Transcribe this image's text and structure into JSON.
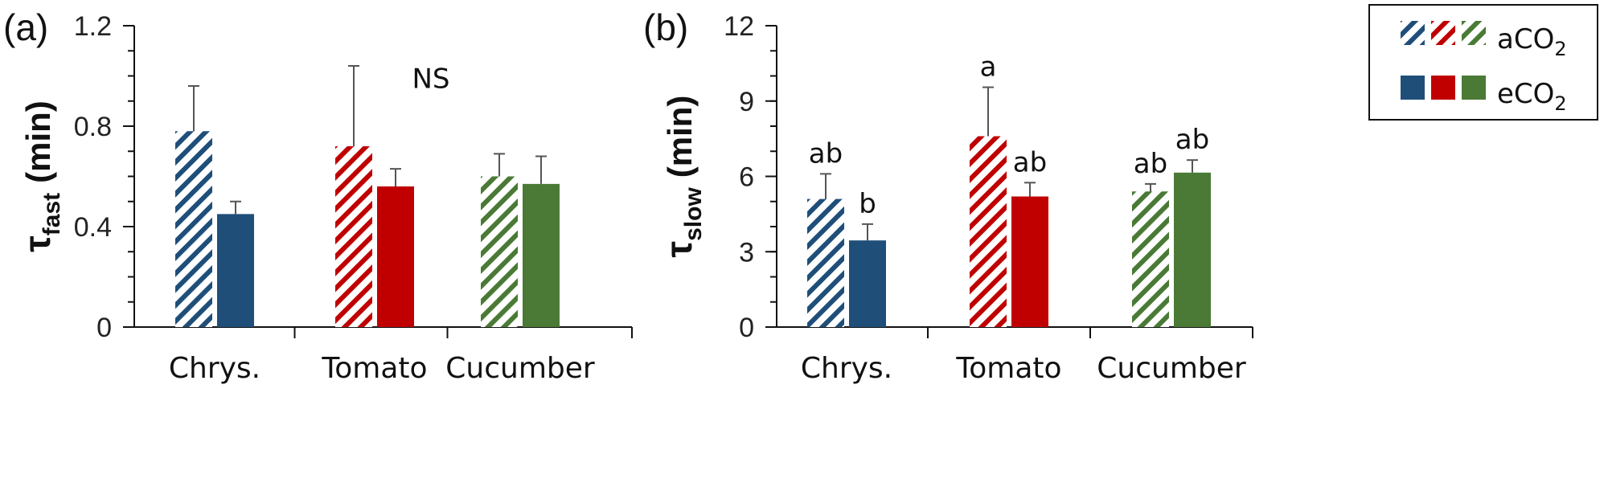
{
  "colors": {
    "Chrys.": "#1f4e79",
    "Tomato": "#c00000",
    "Cucumber": "#4a7a35",
    "axis": "#111111",
    "error": "#555555"
  },
  "legend": {
    "items": [
      {
        "label": "aCO",
        "subscript": "2",
        "fill": "hatched"
      },
      {
        "label": "eCO",
        "subscript": "2",
        "fill": "solid"
      }
    ]
  },
  "chart_data": [
    {
      "type": "bar",
      "panel": "(a)",
      "ylabel": {
        "symbol": "τ",
        "subscript": "fast",
        "unit": "(min)"
      },
      "categories": [
        "Chrys.",
        "Tomato",
        "Cucumber"
      ],
      "ylim": [
        0,
        1.2
      ],
      "yticks": [
        "0",
        "0.4",
        "0.8",
        "1.2"
      ],
      "ytick_values": [
        0,
        0.4,
        0.8,
        1.2
      ],
      "minor_tick_step": 0.1,
      "series": [
        {
          "name": "aCO2",
          "fill": "hatched",
          "values": [
            0.78,
            0.72,
            0.6
          ],
          "errors": [
            0.18,
            0.32,
            0.09
          ]
        },
        {
          "name": "eCO2",
          "fill": "solid",
          "values": [
            0.45,
            0.56,
            0.57
          ],
          "errors": [
            0.05,
            0.07,
            0.11
          ]
        }
      ],
      "annotations": [
        {
          "text": "NS",
          "category": 1,
          "y": 0.99
        }
      ]
    },
    {
      "type": "bar",
      "panel": "(b)",
      "ylabel": {
        "symbol": "τ",
        "subscript": "slow",
        "unit": "(min)"
      },
      "categories": [
        "Chrys.",
        "Tomato",
        "Cucumber"
      ],
      "ylim": [
        0,
        12
      ],
      "yticks": [
        "0",
        "3",
        "6",
        "9",
        "12"
      ],
      "ytick_values": [
        0,
        3,
        6,
        9,
        12
      ],
      "minor_tick_step": 1,
      "series": [
        {
          "name": "aCO2",
          "fill": "hatched",
          "values": [
            5.1,
            7.6,
            5.4
          ],
          "errors": [
            1.0,
            1.95,
            0.3
          ],
          "labels": [
            "ab",
            "a",
            "ab"
          ]
        },
        {
          "name": "eCO2",
          "fill": "solid",
          "values": [
            3.45,
            5.2,
            6.15
          ],
          "errors": [
            0.65,
            0.55,
            0.5
          ],
          "labels": [
            "b",
            "ab",
            "ab"
          ]
        }
      ]
    }
  ]
}
